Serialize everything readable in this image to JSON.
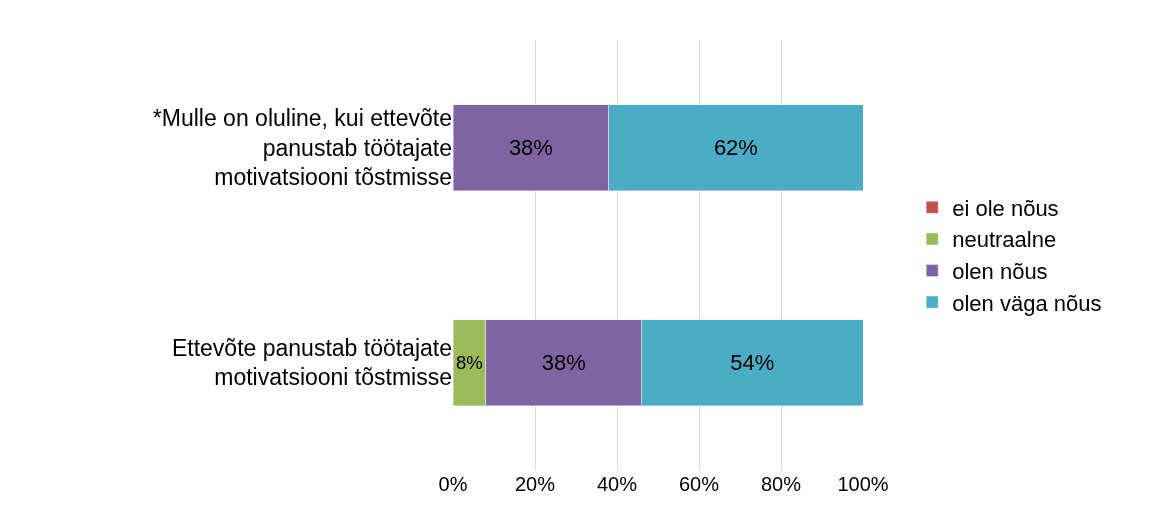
{
  "chart_data": {
    "type": "bar",
    "orientation": "horizontal",
    "stacked": true,
    "categories": [
      "*Mulle on oluline, kui ettevõte panustab töötajate motivatsiooni tõstmisse",
      "Ettevõte panustab töötajate motivatsiooni tõstmisse"
    ],
    "series": [
      {
        "name": "ei ole nõus",
        "color": "#c0504d",
        "values": [
          0,
          0
        ],
        "value_labels": [
          null,
          null
        ]
      },
      {
        "name": "neutraalne",
        "color": "#9bbb59",
        "values": [
          0,
          8
        ],
        "value_labels": [
          null,
          "8%"
        ]
      },
      {
        "name": "olen nõus",
        "color": "#8064a2",
        "values": [
          38,
          38
        ],
        "value_labels": [
          "38%",
          "38%"
        ]
      },
      {
        "name": "olen väga nõus",
        "color": "#4bacc6",
        "values": [
          62,
          54
        ],
        "value_labels": [
          "62%",
          "54%"
        ]
      }
    ],
    "xlim": [
      0,
      100
    ],
    "xticks": [
      {
        "value": 0,
        "label": "0%"
      },
      {
        "value": 20,
        "label": "20%"
      },
      {
        "value": 40,
        "label": "40%"
      },
      {
        "value": 60,
        "label": "60%"
      },
      {
        "value": 80,
        "label": "80%"
      },
      {
        "value": 100,
        "label": "100%"
      }
    ],
    "grid": "x",
    "legend": "right"
  }
}
